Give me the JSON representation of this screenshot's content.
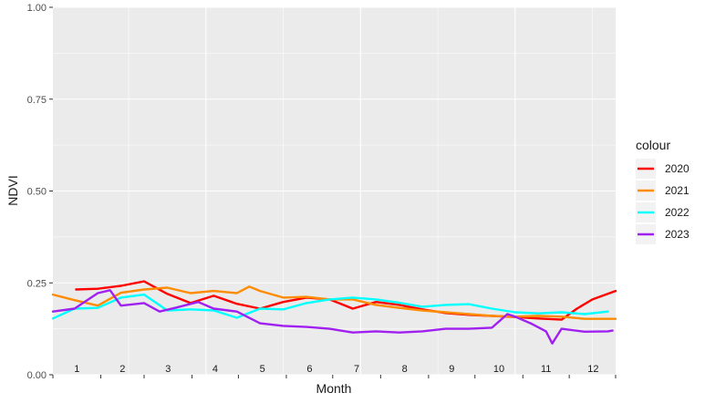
{
  "chart_data": {
    "type": "line",
    "xlabel": "Month",
    "ylabel": "NDVI",
    "xlim": [
      1,
      365
    ],
    "ylim": [
      0,
      1
    ],
    "y_ticks": [
      "0.00",
      "0.25",
      "0.50",
      "0.75",
      "1.00"
    ],
    "month_labels": [
      "1",
      "2",
      "3",
      "4",
      "5",
      "6",
      "7",
      "8",
      "9",
      "10",
      "11",
      "12"
    ],
    "grid": true,
    "legend": {
      "title": "colour",
      "placement": "right"
    },
    "series": [
      {
        "name": "2020",
        "color": "#FF0000",
        "x": [
          16,
          30,
          45,
          60,
          75,
          90,
          105,
          120,
          135,
          150,
          165,
          180,
          195,
          210,
          225,
          240,
          255,
          270,
          285,
          300,
          315,
          330,
          340,
          350,
          365
        ],
        "y": [
          0.232,
          0.234,
          0.242,
          0.254,
          0.22,
          0.195,
          0.215,
          0.193,
          0.18,
          0.198,
          0.21,
          0.205,
          0.18,
          0.198,
          0.19,
          0.178,
          0.168,
          0.163,
          0.16,
          0.157,
          0.153,
          0.15,
          0.18,
          0.205,
          0.228
        ]
      },
      {
        "name": "2021",
        "color": "#FF8C00",
        "x": [
          1,
          15,
          30,
          45,
          60,
          75,
          90,
          105,
          120,
          128,
          135,
          150,
          165,
          180,
          195,
          210,
          225,
          240,
          255,
          270,
          285,
          300,
          315,
          330,
          345,
          365
        ],
        "y": [
          0.218,
          0.203,
          0.188,
          0.223,
          0.232,
          0.237,
          0.222,
          0.228,
          0.222,
          0.24,
          0.228,
          0.21,
          0.212,
          0.205,
          0.205,
          0.19,
          0.182,
          0.175,
          0.17,
          0.165,
          0.16,
          0.158,
          0.16,
          0.158,
          0.152,
          0.152
        ]
      },
      {
        "name": "2022",
        "color": "#00FFFF",
        "x": [
          1,
          15,
          30,
          45,
          60,
          75,
          90,
          105,
          120,
          135,
          150,
          165,
          180,
          195,
          210,
          225,
          240,
          255,
          270,
          285,
          300,
          315,
          330,
          345,
          360
        ],
        "y": [
          0.153,
          0.18,
          0.182,
          0.21,
          0.218,
          0.175,
          0.178,
          0.175,
          0.155,
          0.18,
          0.178,
          0.195,
          0.205,
          0.21,
          0.205,
          0.196,
          0.185,
          0.19,
          0.192,
          0.18,
          0.17,
          0.167,
          0.17,
          0.165,
          0.172
        ]
      },
      {
        "name": "2023",
        "color": "#A020F0",
        "x": [
          1,
          15,
          30,
          38,
          45,
          60,
          70,
          80,
          95,
          105,
          120,
          135,
          150,
          165,
          180,
          195,
          210,
          225,
          240,
          255,
          270,
          285,
          295,
          300,
          310,
          320,
          324,
          330,
          345,
          360,
          363
        ],
        "y": [
          0.172,
          0.18,
          0.222,
          0.23,
          0.188,
          0.195,
          0.172,
          0.182,
          0.198,
          0.18,
          0.172,
          0.14,
          0.133,
          0.13,
          0.125,
          0.115,
          0.118,
          0.115,
          0.118,
          0.125,
          0.125,
          0.128,
          0.165,
          0.158,
          0.14,
          0.118,
          0.085,
          0.125,
          0.117,
          0.118,
          0.12
        ]
      }
    ]
  }
}
